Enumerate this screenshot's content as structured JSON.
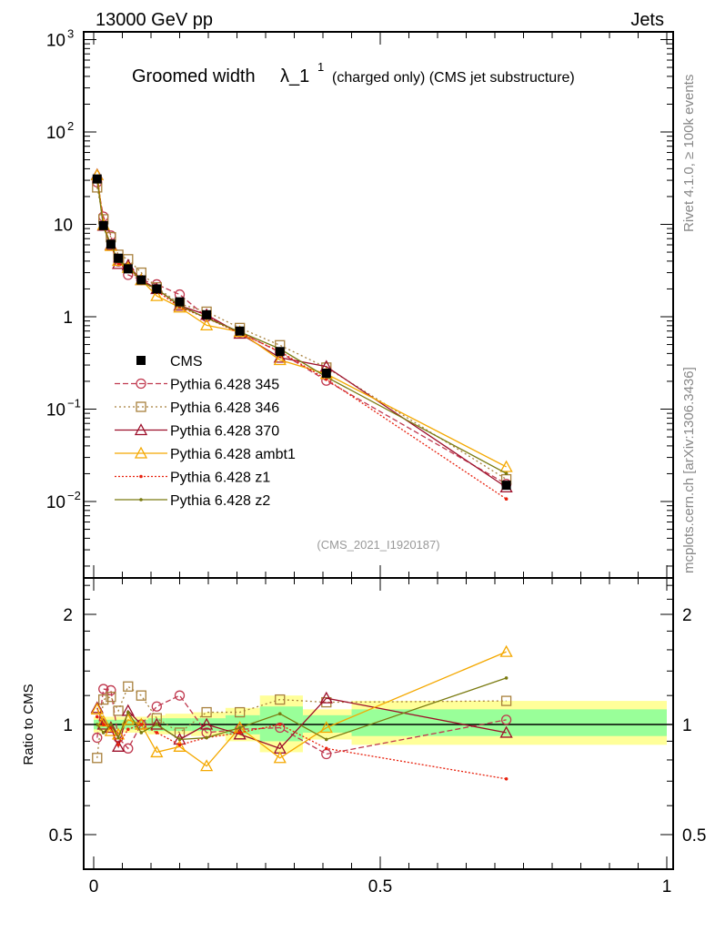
{
  "header": {
    "left": "13000 GeV pp",
    "right": "Jets"
  },
  "side": {
    "top": "Rivet 4.1.0, ≥ 100k events",
    "bottom": "mcplots.cern.ch [arXiv:1306.3436]"
  },
  "chart_data": {
    "type": "line",
    "title_main": "Groomed width",
    "title_sym": "λ_1",
    "title_sup": "1",
    "title_rest": "(charged only) (CMS jet substructure)",
    "analysis": "(CMS_2021_I1920187)",
    "ratio_ylabel": "Ratio to CMS",
    "xlim": [
      0,
      1
    ],
    "ylim_main": [
      0.0015,
      1300
    ],
    "ylim_ratio": [
      0.45,
      2.5
    ],
    "yscale": "log",
    "x_ticks": [
      {
        "v": 0,
        "label": "0"
      },
      {
        "v": 0.5,
        "label": "0.5"
      },
      {
        "v": 1,
        "label": "1"
      }
    ],
    "y_ticks_main": [
      {
        "v": 1000,
        "base": "10",
        "exp": "3"
      },
      {
        "v": 100,
        "base": "10",
        "exp": "2"
      },
      {
        "v": 10,
        "base": "10",
        "exp": ""
      },
      {
        "v": 1,
        "base": "1",
        "exp": ""
      },
      {
        "v": 0.1,
        "base": "10",
        "exp": "−1"
      },
      {
        "v": 0.01,
        "base": "10",
        "exp": "−2"
      }
    ],
    "y_ticks_ratio": [
      {
        "v": 2,
        "label": "2"
      },
      {
        "v": 1,
        "label": "1"
      },
      {
        "v": 0.5,
        "label": "0.5"
      }
    ],
    "bin_edges": [
      0,
      0.01,
      0.02,
      0.035,
      0.05,
      0.07,
      0.095,
      0.125,
      0.17,
      0.23,
      0.29,
      0.365,
      0.45,
      1.0
    ],
    "x": [
      0.006,
      0.017,
      0.03,
      0.043,
      0.06,
      0.083,
      0.11,
      0.15,
      0.197,
      0.255,
      0.325,
      0.406,
      0.72
    ],
    "data": {
      "name": "CMS",
      "values": [
        31,
        9.7,
        6.1,
        4.3,
        3.3,
        2.5,
        2.0,
        1.45,
        1.05,
        0.7,
        0.42,
        0.245,
        0.015
      ],
      "band_total": [
        [
          0.95,
          1.05
        ],
        [
          0.95,
          1.05
        ],
        [
          0.95,
          1.05
        ],
        [
          0.95,
          1.05
        ],
        [
          0.95,
          1.05
        ],
        [
          0.95,
          1.05
        ],
        [
          0.94,
          1.06
        ],
        [
          0.94,
          1.07
        ],
        [
          0.93,
          1.08
        ],
        [
          0.9,
          1.11
        ],
        [
          0.84,
          1.2
        ],
        [
          0.91,
          1.1
        ],
        [
          0.88,
          1.16
        ]
      ],
      "band_stat": [
        [
          0.97,
          1.03
        ],
        [
          0.97,
          1.03
        ],
        [
          0.97,
          1.03
        ],
        [
          0.97,
          1.03
        ],
        [
          0.97,
          1.03
        ],
        [
          0.97,
          1.03
        ],
        [
          0.96,
          1.04
        ],
        [
          0.96,
          1.04
        ],
        [
          0.96,
          1.04
        ],
        [
          0.94,
          1.06
        ],
        [
          0.9,
          1.12
        ],
        [
          0.95,
          1.06
        ],
        [
          0.93,
          1.1
        ]
      ]
    },
    "series": [
      {
        "name": "Pythia 6.428 345",
        "color": "#c0394f",
        "marker": "circle",
        "dash": "6,3",
        "ratio": [
          0.92,
          1.25,
          1.24,
          0.92,
          0.86,
          1.0,
          1.12,
          1.2,
          0.95,
          0.97,
          0.98,
          0.83,
          1.03
        ]
      },
      {
        "name": "Pythia 6.428 346",
        "color": "#a8803c",
        "marker": "square",
        "dash": "2,3",
        "ratio": [
          0.81,
          1.17,
          1.19,
          1.09,
          1.27,
          1.2,
          1.04,
          0.95,
          1.08,
          1.08,
          1.17,
          1.15,
          1.16
        ]
      },
      {
        "name": "Pythia 6.428 370",
        "color": "#9c0f2a",
        "marker": "triangle",
        "dash": "",
        "ratio": [
          1.11,
          1.0,
          0.98,
          0.87,
          1.09,
          1.0,
          1.0,
          0.91,
          1.0,
          0.94,
          0.86,
          1.18,
          0.95
        ]
      },
      {
        "name": "Pythia 6.428 ambt1",
        "color": "#f4a800",
        "marker": "triangle",
        "dash": "",
        "ratio": [
          1.1,
          1.02,
          0.96,
          0.94,
          1.03,
          1.0,
          0.84,
          0.87,
          0.77,
          0.98,
          0.81,
          0.98,
          1.58
        ]
      },
      {
        "name": "Pythia 6.428 z1",
        "color": "#e8200c",
        "marker": "dot",
        "dash": "2,2",
        "ratio": [
          1.05,
          1.0,
          0.98,
          0.88,
          0.97,
          1.0,
          0.95,
          0.88,
          0.92,
          0.95,
          1.0,
          0.86,
          0.71
        ]
      },
      {
        "name": "Pythia 6.428 z2",
        "color": "#7a7a10",
        "marker": "dot",
        "dash": "",
        "ratio": [
          1.0,
          0.95,
          1.0,
          0.92,
          1.08,
          0.95,
          1.0,
          0.91,
          0.92,
          0.98,
          1.07,
          0.91,
          1.34
        ]
      }
    ]
  }
}
